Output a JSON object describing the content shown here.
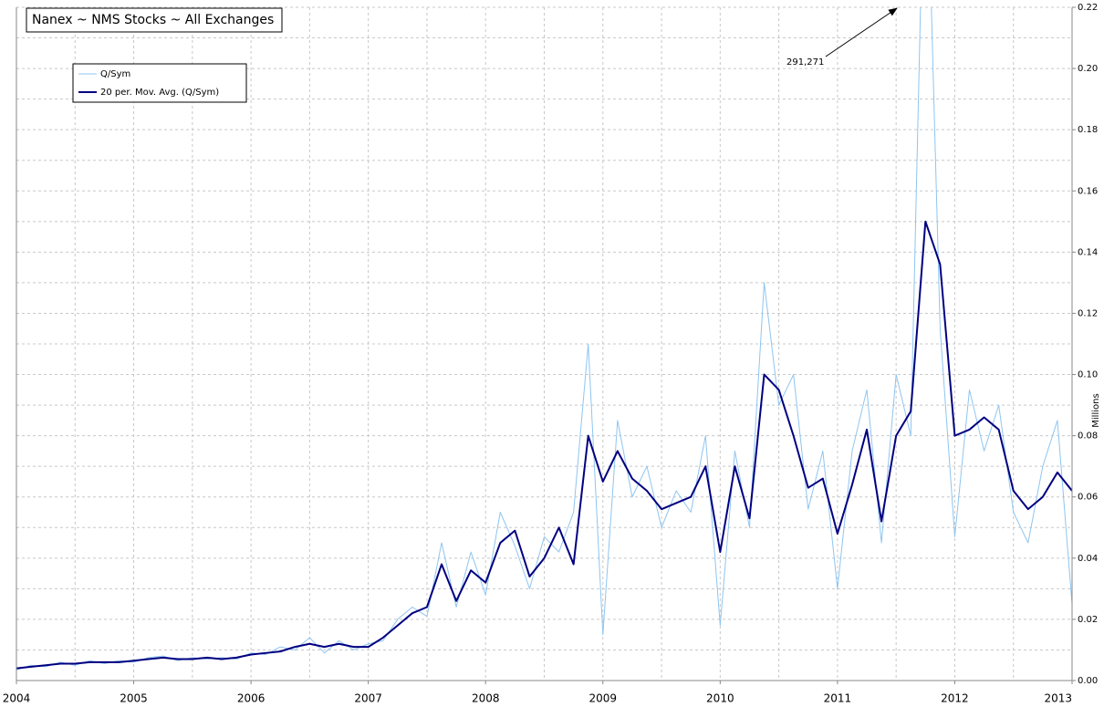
{
  "chart_data": {
    "type": "line",
    "title": "Nanex ~ NMS Stocks ~ All Exchanges",
    "y_label": "Millions",
    "annotation": "291,271",
    "x": [
      2004,
      2004.125,
      2004.25,
      2004.375,
      2004.5,
      2004.625,
      2004.75,
      2004.875,
      2005,
      2005.125,
      2005.25,
      2005.375,
      2005.5,
      2005.625,
      2005.75,
      2005.875,
      2006,
      2006.125,
      2006.25,
      2006.375,
      2006.5,
      2006.625,
      2006.75,
      2006.875,
      2007,
      2007.125,
      2007.25,
      2007.375,
      2007.5,
      2007.625,
      2007.75,
      2007.875,
      2008,
      2008.125,
      2008.25,
      2008.375,
      2008.5,
      2008.625,
      2008.75,
      2008.875,
      2009,
      2009.125,
      2009.25,
      2009.375,
      2009.5,
      2009.625,
      2009.75,
      2009.875,
      2010,
      2010.125,
      2010.25,
      2010.375,
      2010.5,
      2010.625,
      2010.75,
      2010.875,
      2011,
      2011.125,
      2011.25,
      2011.375,
      2011.5,
      2011.625,
      2011.75,
      2011.875,
      2012,
      2012.125,
      2012.25,
      2012.375,
      2012.5,
      2012.625,
      2012.75,
      2012.875,
      2013
    ],
    "series": [
      {
        "name": "Q/Sym",
        "color": "#8ec5f0",
        "width": 1,
        "values": [
          0.0035,
          0.005,
          0.0045,
          0.006,
          0.005,
          0.0065,
          0.0055,
          0.0065,
          0.006,
          0.0075,
          0.008,
          0.0065,
          0.0075,
          0.007,
          0.0075,
          0.007,
          0.009,
          0.0085,
          0.011,
          0.01,
          0.014,
          0.009,
          0.013,
          0.01,
          0.012,
          0.013,
          0.02,
          0.024,
          0.021,
          0.045,
          0.024,
          0.042,
          0.028,
          0.055,
          0.044,
          0.03,
          0.047,
          0.042,
          0.055,
          0.11,
          0.015,
          0.085,
          0.06,
          0.07,
          0.05,
          0.062,
          0.055,
          0.08,
          0.018,
          0.075,
          0.05,
          0.13,
          0.09,
          0.1,
          0.056,
          0.075,
          0.03,
          0.075,
          0.095,
          0.045,
          0.1,
          0.08,
          0.291271,
          0.115,
          0.047,
          0.095,
          0.075,
          0.09,
          0.055,
          0.045,
          0.07,
          0.085,
          0.025
        ]
      },
      {
        "name": "20 per. Mov. Avg. (Q/Sym)",
        "color": "#000080",
        "width": 2,
        "values": [
          0.004,
          0.0045,
          0.005,
          0.0055,
          0.0055,
          0.006,
          0.006,
          0.006,
          0.0065,
          0.007,
          0.0075,
          0.007,
          0.007,
          0.0075,
          0.007,
          0.0075,
          0.0085,
          0.009,
          0.0095,
          0.011,
          0.012,
          0.011,
          0.012,
          0.011,
          0.011,
          0.014,
          0.018,
          0.022,
          0.024,
          0.038,
          0.026,
          0.036,
          0.032,
          0.045,
          0.049,
          0.034,
          0.04,
          0.05,
          0.038,
          0.08,
          0.065,
          0.075,
          0.066,
          0.062,
          0.056,
          0.058,
          0.06,
          0.07,
          0.042,
          0.07,
          0.053,
          0.1,
          0.095,
          0.08,
          0.063,
          0.066,
          0.048,
          0.064,
          0.082,
          0.052,
          0.08,
          0.088,
          0.15,
          0.136,
          0.08,
          0.082,
          0.086,
          0.082,
          0.062,
          0.056,
          0.06,
          0.068,
          0.062
        ]
      }
    ],
    "xlim": [
      2004,
      2013
    ],
    "xticks": [
      2004,
      2005,
      2006,
      2007,
      2008,
      2009,
      2010,
      2011,
      2012,
      2013
    ],
    "ylim": [
      0,
      0.22
    ],
    "yticks": [
      {
        "value": 0,
        "label": "0.00"
      },
      0.02,
      0.04,
      0.06,
      0.08,
      {
        "value": 0.1,
        "label": "0.10"
      },
      0.12,
      0.14,
      0.16,
      0.18,
      {
        "value": 0.2,
        "label": "0.20"
      },
      0.22
    ],
    "grid": true
  }
}
